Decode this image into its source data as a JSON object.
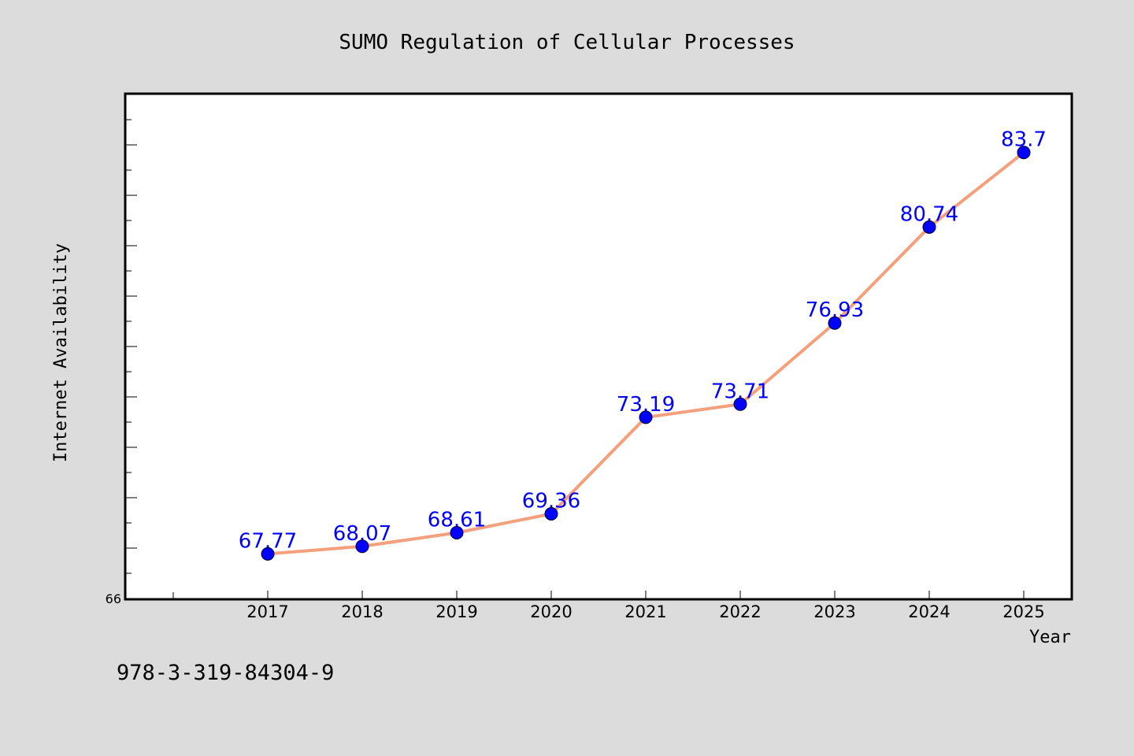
{
  "chart_data": {
    "type": "line",
    "title": "SUMO Regulation of Cellular Processes",
    "xlabel": "Year",
    "ylabel": "Internet Availability",
    "x": [
      "2017",
      "2018",
      "2019",
      "2020",
      "2021",
      "2022",
      "2023",
      "2024",
      "2025"
    ],
    "series": [
      {
        "values": [
          67.77,
          68.07,
          68.61,
          69.36,
          73.19,
          73.71,
          76.93,
          80.74,
          83.7
        ]
      }
    ],
    "data_labels": [
      "67.77",
      "68.07",
      "68.61",
      "69.36",
      "73.19",
      "73.71",
      "76.93",
      "80.74",
      "83.7"
    ],
    "ylim": [
      66,
      86
    ],
    "ytick_labels": [
      "66"
    ],
    "grid": false,
    "line_color": "#f4a07c",
    "marker_color": "#0000ff",
    "label_color": "#0000ff",
    "background_color": "#dcdcdc",
    "plot_background_color": "#ffffff"
  },
  "footer_text": "978-3-319-84304-9"
}
